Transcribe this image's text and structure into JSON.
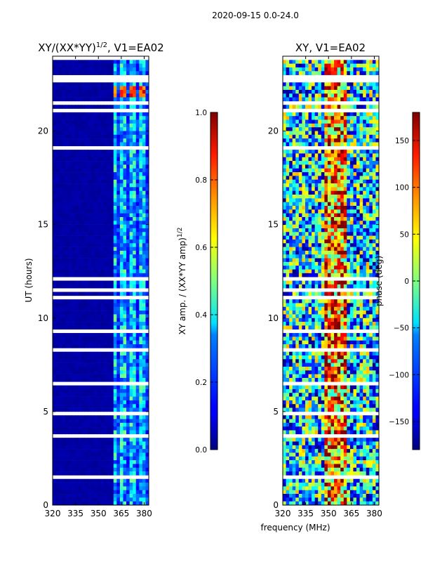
{
  "suptitle": "2020-09-15 0.0-24.0",
  "chart_data": [
    {
      "type": "heatmap",
      "title_text": "XY/(XX*YY)",
      "title_sup": "1/2",
      "title_suffix": ", V1=EA02",
      "xlabel": "",
      "ylabel": "UT (hours)",
      "xlim": [
        320,
        383
      ],
      "ylim": [
        0,
        24
      ],
      "xticks": [
        320,
        335,
        350,
        365,
        380
      ],
      "yticks": [
        0,
        5,
        10,
        15,
        20
      ],
      "colorbar": {
        "label_text": "XY amp. / (XX*YY amp)",
        "label_sup": "1/2",
        "ticks": [
          "0.0",
          "0.2",
          "0.4",
          "0.6",
          "0.8",
          "1.0"
        ],
        "range": [
          0,
          1
        ]
      },
      "data_description": "Background (320-360 MHz) near 0.0; channels 360-383 MHz show stripes of 0.2-0.5"
    },
    {
      "type": "heatmap",
      "title": "XY, V1=EA02",
      "xlabel": "frequency (MHz)",
      "ylabel": "",
      "xlim": [
        320,
        383
      ],
      "ylim": [
        0,
        24
      ],
      "xticks": [
        320,
        335,
        350,
        365,
        380
      ],
      "yticks": [
        0,
        5,
        10,
        15,
        20
      ],
      "colorbar": {
        "label": "phase (deg)",
        "ticks": [
          "150",
          "100",
          "50",
          "0",
          "−50",
          "−100",
          "−150"
        ],
        "range": [
          -180,
          180
        ]
      }
    }
  ]
}
